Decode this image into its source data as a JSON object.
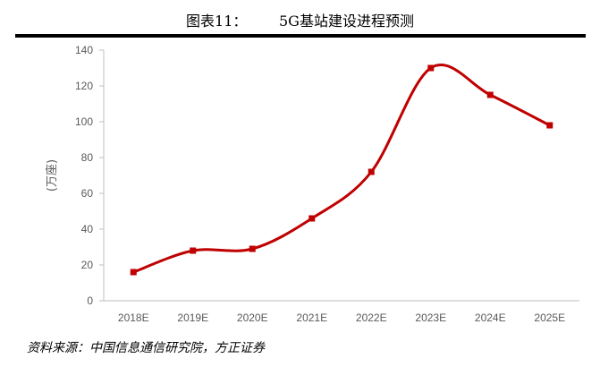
{
  "title": "图表11：       5G基站建设进程预测",
  "source": "资料来源：中国信息通信研究院，方正证券",
  "chart_data": {
    "type": "line",
    "title": "5G基站建设进程预测",
    "categories": [
      "2018E",
      "2019E",
      "2020E",
      "2021E",
      "2022E",
      "2023E",
      "2024E",
      "2025E"
    ],
    "series": [
      {
        "values": [
          16,
          28,
          29,
          46,
          72,
          130,
          115,
          98
        ],
        "color": "#C00000",
        "marker": "square",
        "smooth": true
      }
    ],
    "ylabel": "(万座)",
    "xlabel": "",
    "ylim": [
      0,
      140
    ],
    "yticks": [
      0,
      20,
      40,
      60,
      80,
      100,
      120,
      140
    ],
    "grid": false,
    "legend": "none"
  }
}
